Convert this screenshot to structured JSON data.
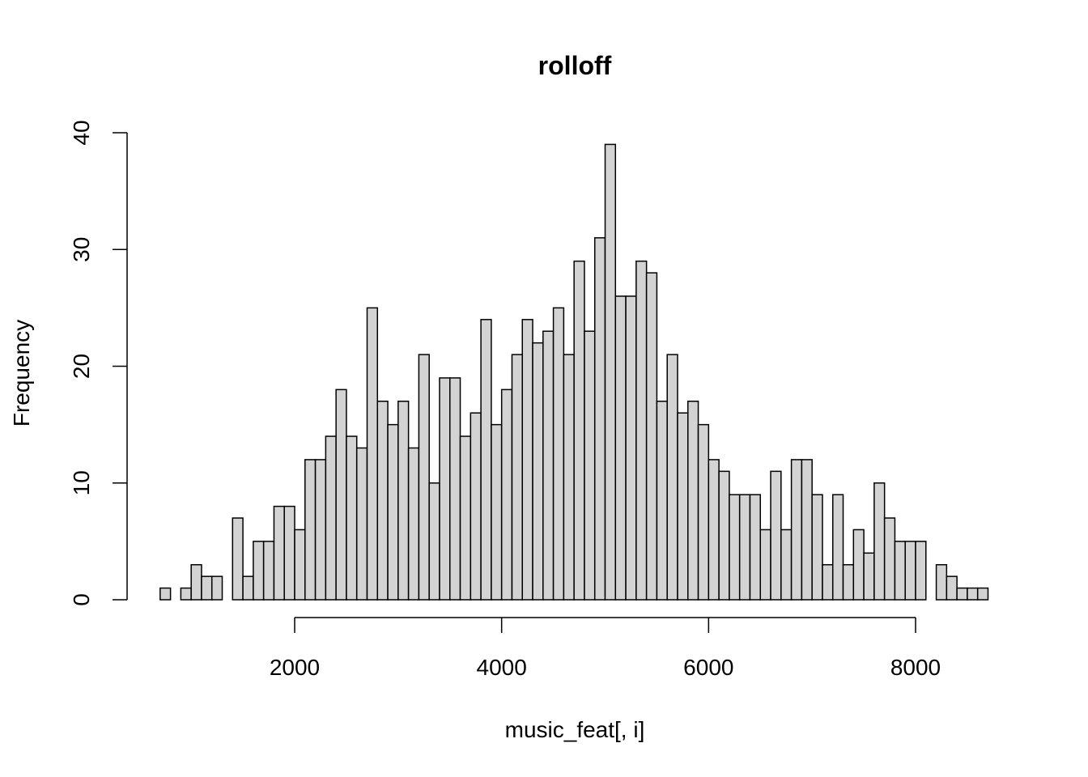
{
  "chart_data": {
    "type": "bar",
    "title": "rolloff",
    "xlabel": "music_feat[, i]",
    "ylabel": "Frequency",
    "bin_width": 100,
    "bin_start": 700,
    "x": [
      750,
      850,
      950,
      1050,
      1150,
      1250,
      1350,
      1450,
      1550,
      1650,
      1750,
      1850,
      1950,
      2050,
      2150,
      2250,
      2350,
      2450,
      2550,
      2650,
      2750,
      2850,
      2950,
      3050,
      3150,
      3250,
      3350,
      3450,
      3550,
      3650,
      3750,
      3850,
      3950,
      4050,
      4150,
      4250,
      4350,
      4450,
      4550,
      4650,
      4750,
      4850,
      4950,
      5050,
      5150,
      5250,
      5350,
      5450,
      5550,
      5650,
      5750,
      5850,
      5950,
      6050,
      6150,
      6250,
      6350,
      6450,
      6550,
      6650,
      6750,
      6850,
      6950,
      7050,
      7150,
      7250,
      7350,
      7450,
      7550,
      7650,
      7750,
      7850,
      7950,
      8050,
      8150,
      8250,
      8350,
      8450,
      8550,
      8650
    ],
    "values": [
      1,
      0,
      1,
      3,
      2,
      2,
      0,
      7,
      2,
      5,
      5,
      8,
      8,
      6,
      12,
      12,
      14,
      18,
      14,
      13,
      25,
      17,
      15,
      17,
      13,
      21,
      10,
      19,
      19,
      14,
      16,
      24,
      15,
      18,
      21,
      24,
      22,
      23,
      25,
      21,
      29,
      23,
      31,
      39,
      26,
      26,
      29,
      28,
      17,
      21,
      16,
      17,
      15,
      12,
      11,
      9,
      9,
      9,
      6,
      11,
      6,
      12,
      12,
      9,
      3,
      9,
      3,
      6,
      4,
      10,
      7,
      5,
      5,
      5,
      0,
      3,
      2,
      1,
      1,
      1
    ],
    "xticks": [
      2000,
      4000,
      6000,
      8000
    ],
    "xtick_labels": [
      "2000",
      "4000",
      "6000",
      "8000"
    ],
    "yticks": [
      0,
      10,
      20,
      30,
      40
    ],
    "ytick_labels": [
      "0",
      "10",
      "20",
      "30",
      "40"
    ],
    "ylim": [
      0,
      40
    ],
    "grid": false,
    "legend": "none",
    "bar_color": "#d3d3d3",
    "edge_color": "#000000"
  }
}
